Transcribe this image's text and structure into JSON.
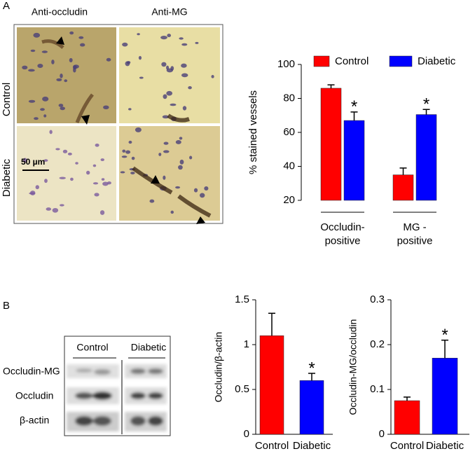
{
  "panel_a": {
    "label": "A",
    "columns": [
      "Anti-occludin",
      "Anti-MG"
    ],
    "rows": [
      "Control",
      "Diabetic"
    ],
    "scale_bar": "50 µm"
  },
  "panel_b": {
    "label": "B",
    "blot_columns": [
      "Control",
      "Diabetic"
    ],
    "blot_rows": [
      "Occludin-MG",
      "Occludin",
      "β-actin"
    ]
  },
  "significance_mark": "*",
  "chart_data": [
    {
      "type": "bar",
      "ylabel": "% stained vessels",
      "categories": [
        "Occludin-\npositive",
        "MG -\npositive"
      ],
      "series": [
        {
          "name": "Control",
          "color": "#ff0000",
          "values": [
            86,
            35
          ],
          "errors": [
            2,
            4
          ],
          "significant": [
            false,
            false
          ]
        },
        {
          "name": "Diabetic",
          "color": "#0000ff",
          "values": [
            67,
            70.5
          ],
          "errors": [
            5,
            3
          ],
          "significant": [
            true,
            true
          ]
        }
      ],
      "ylim": [
        20,
        100
      ],
      "yticks": [
        20,
        40,
        60,
        80,
        100
      ],
      "legend": "top"
    },
    {
      "type": "bar",
      "ylabel": "Occludin/β-actin",
      "categories": [
        "Control",
        "Diabetic"
      ],
      "values": [
        1.1,
        0.6
      ],
      "errors": [
        0.25,
        0.08
      ],
      "colors": [
        "#ff0000",
        "#0000ff"
      ],
      "significant": [
        false,
        true
      ],
      "ylim": [
        0,
        1.5
      ],
      "yticks": [
        0,
        0.5,
        1,
        1.5
      ]
    },
    {
      "type": "bar",
      "ylabel": "Occludin-MG/occludin",
      "categories": [
        "Control",
        "Diabetic"
      ],
      "values": [
        0.075,
        0.17
      ],
      "errors": [
        0.008,
        0.04
      ],
      "colors": [
        "#ff0000",
        "#0000ff"
      ],
      "significant": [
        false,
        true
      ],
      "ylim": [
        0,
        0.3
      ],
      "yticks": [
        0,
        0.1,
        0.2,
        0.3
      ]
    }
  ]
}
